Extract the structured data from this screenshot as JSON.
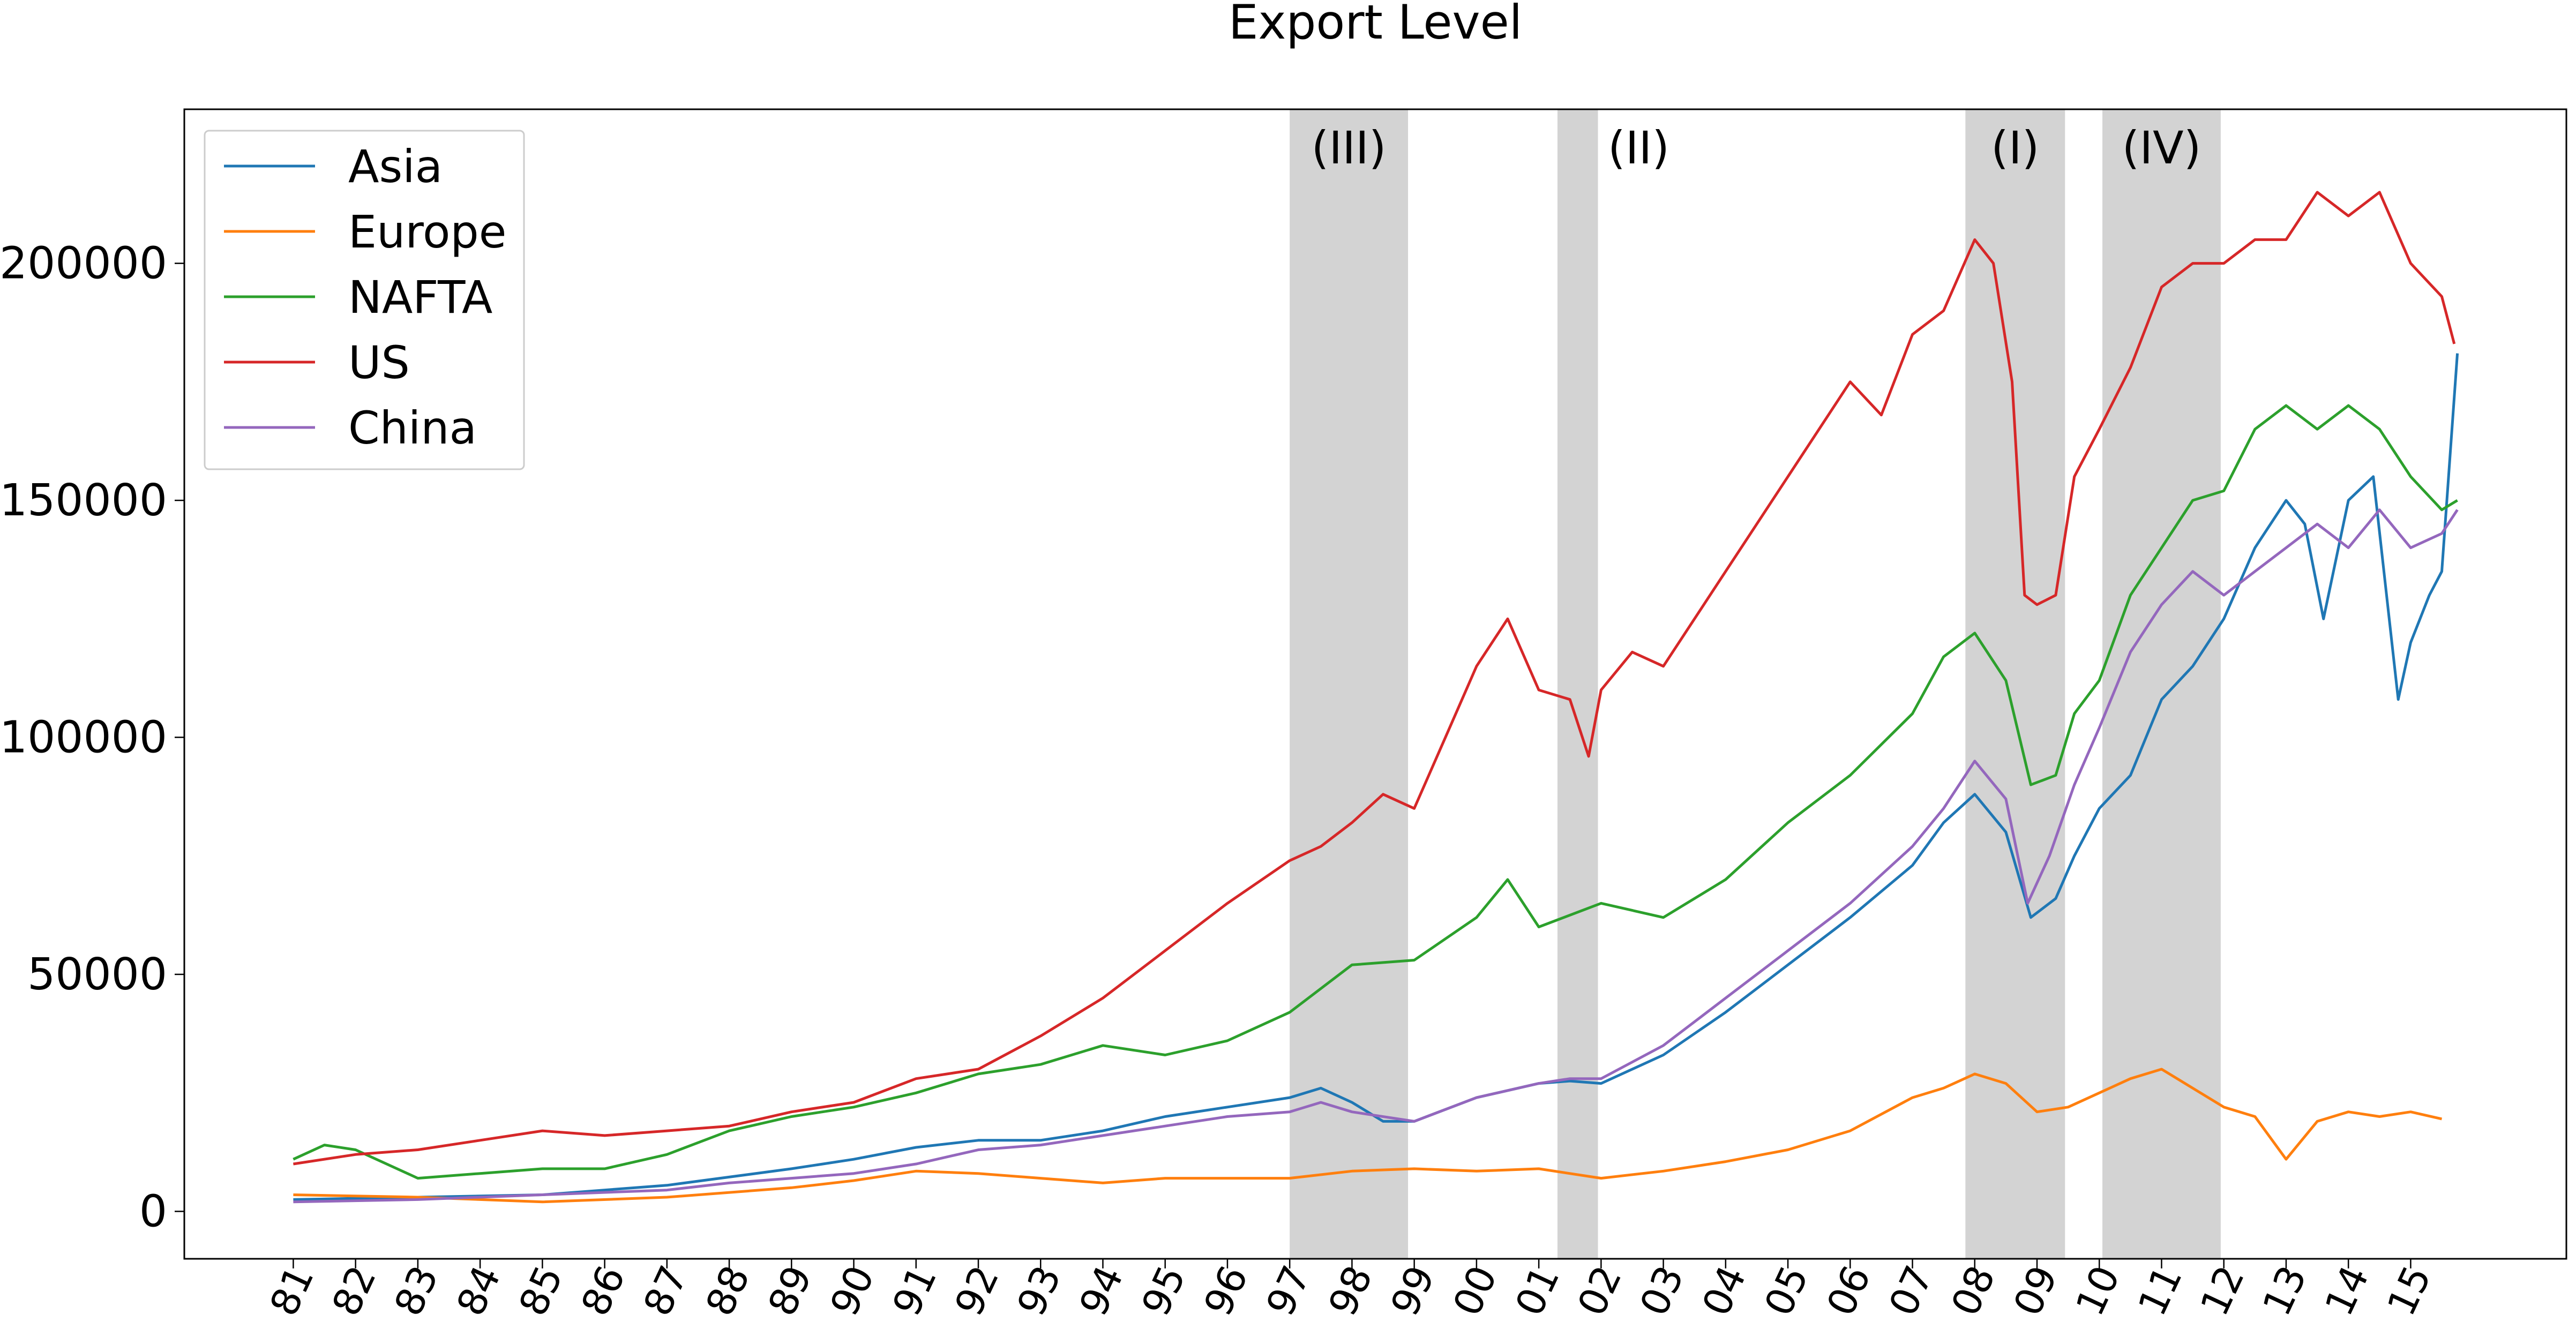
{
  "chart_data": {
    "type": "line",
    "title": "Export Level",
    "xlabel": "",
    "ylabel": "",
    "xlim": [
      1979.25,
      2017.5
    ],
    "ylim": [
      -10000,
      232500
    ],
    "x_tick_labels": [
      "81",
      "82",
      "83",
      "84",
      "85",
      "86",
      "87",
      "88",
      "89",
      "90",
      "91",
      "92",
      "93",
      "94",
      "95",
      "96",
      "97",
      "98",
      "99",
      "00",
      "01",
      "02",
      "03",
      "04",
      "05",
      "06",
      "07",
      "08",
      "09",
      "10",
      "11",
      "12",
      "13",
      "14",
      "15"
    ],
    "x_tick_years": [
      1981,
      1982,
      1983,
      1984,
      1985,
      1986,
      1987,
      1988,
      1989,
      1990,
      1991,
      1992,
      1993,
      1994,
      1995,
      1996,
      1997,
      1998,
      1999,
      2000,
      2001,
      2002,
      2003,
      2004,
      2005,
      2006,
      2007,
      2008,
      2009,
      2010,
      2011,
      2012,
      2013,
      2014,
      2015
    ],
    "y_ticks": [
      0,
      50000,
      100000,
      150000,
      200000
    ],
    "y_tick_labels": [
      "0",
      "50000",
      "100000",
      "150000",
      "200000"
    ],
    "grid": false,
    "legend_position": "top-left",
    "shaded_periods": [
      {
        "label": "(III)",
        "start": 1997.0,
        "end": 1998.9
      },
      {
        "label": "(II)",
        "start": 2001.3,
        "end": 2001.95
      },
      {
        "label": "(I)",
        "start": 2007.85,
        "end": 2009.45
      },
      {
        "label": "(IV)",
        "start": 2010.05,
        "end": 2011.95
      }
    ],
    "series": [
      {
        "name": "Asia",
        "color": "#1f77b4",
        "points": [
          [
            1981,
            2500
          ],
          [
            1983,
            3000
          ],
          [
            1985,
            3500
          ],
          [
            1987,
            5500
          ],
          [
            1989,
            9000
          ],
          [
            1990,
            11000
          ],
          [
            1991,
            13500
          ],
          [
            1992,
            15000
          ],
          [
            1993,
            15000
          ],
          [
            1994,
            17000
          ],
          [
            1995,
            20000
          ],
          [
            1996,
            22000
          ],
          [
            1997,
            24000
          ],
          [
            1997.5,
            26000
          ],
          [
            1998,
            23000
          ],
          [
            1998.5,
            19000
          ],
          [
            1999,
            19000
          ],
          [
            2000,
            24000
          ],
          [
            2001,
            27000
          ],
          [
            2001.5,
            27500
          ],
          [
            2002,
            27000
          ],
          [
            2003,
            33000
          ],
          [
            2004,
            42000
          ],
          [
            2005,
            52000
          ],
          [
            2006,
            62000
          ],
          [
            2007,
            73000
          ],
          [
            2007.5,
            82000
          ],
          [
            2008,
            88000
          ],
          [
            2008.5,
            80000
          ],
          [
            2008.9,
            62000
          ],
          [
            2009.3,
            66000
          ],
          [
            2009.6,
            75000
          ],
          [
            2010,
            85000
          ],
          [
            2010.5,
            92000
          ],
          [
            2011,
            108000
          ],
          [
            2011.5,
            115000
          ],
          [
            2012,
            125000
          ],
          [
            2012.5,
            140000
          ],
          [
            2013,
            150000
          ],
          [
            2013.3,
            145000
          ],
          [
            2013.6,
            125000
          ],
          [
            2014,
            150000
          ],
          [
            2014.4,
            155000
          ],
          [
            2014.8,
            108000
          ],
          [
            2015,
            120000
          ],
          [
            2015.3,
            130000
          ],
          [
            2015.5,
            135000
          ],
          [
            2015.75,
            181000
          ]
        ]
      },
      {
        "name": "Europe",
        "color": "#ff7f0e",
        "points": [
          [
            1981,
            3500
          ],
          [
            1983,
            3000
          ],
          [
            1985,
            2000
          ],
          [
            1987,
            3000
          ],
          [
            1989,
            5000
          ],
          [
            1990,
            6500
          ],
          [
            1991,
            8500
          ],
          [
            1992,
            8000
          ],
          [
            1993,
            7000
          ],
          [
            1994,
            6000
          ],
          [
            1995,
            7000
          ],
          [
            1996,
            7000
          ],
          [
            1997,
            7000
          ],
          [
            1998,
            8500
          ],
          [
            1999,
            9000
          ],
          [
            2000,
            8500
          ],
          [
            2001,
            9000
          ],
          [
            2002,
            7000
          ],
          [
            2003,
            8500
          ],
          [
            2004,
            10500
          ],
          [
            2005,
            13000
          ],
          [
            2006,
            17000
          ],
          [
            2007,
            24000
          ],
          [
            2007.5,
            26000
          ],
          [
            2008,
            29000
          ],
          [
            2008.5,
            27000
          ],
          [
            2009,
            21000
          ],
          [
            2009.5,
            22000
          ],
          [
            2010,
            25000
          ],
          [
            2010.5,
            28000
          ],
          [
            2011,
            30000
          ],
          [
            2011.5,
            26000
          ],
          [
            2012,
            22000
          ],
          [
            2012.5,
            20000
          ],
          [
            2013,
            11000
          ],
          [
            2013.5,
            19000
          ],
          [
            2014,
            21000
          ],
          [
            2014.5,
            20000
          ],
          [
            2015,
            21000
          ],
          [
            2015.5,
            19500
          ]
        ]
      },
      {
        "name": "NAFTA",
        "color": "#2ca02c",
        "points": [
          [
            1981,
            11000
          ],
          [
            1981.5,
            14000
          ],
          [
            1982,
            13000
          ],
          [
            1983,
            7000
          ],
          [
            1984,
            8000
          ],
          [
            1985,
            9000
          ],
          [
            1986,
            9000
          ],
          [
            1987,
            12000
          ],
          [
            1988,
            17000
          ],
          [
            1989,
            20000
          ],
          [
            1990,
            22000
          ],
          [
            1991,
            25000
          ],
          [
            1992,
            29000
          ],
          [
            1993,
            31000
          ],
          [
            1994,
            35000
          ],
          [
            1995,
            33000
          ],
          [
            1996,
            36000
          ],
          [
            1997,
            42000
          ],
          [
            1998,
            52000
          ],
          [
            1999,
            53000
          ],
          [
            2000,
            62000
          ],
          [
            2000.5,
            70000
          ],
          [
            2001,
            60000
          ],
          [
            2002,
            65000
          ],
          [
            2003,
            62000
          ],
          [
            2004,
            70000
          ],
          [
            2005,
            82000
          ],
          [
            2006,
            92000
          ],
          [
            2007,
            105000
          ],
          [
            2007.5,
            117000
          ],
          [
            2008,
            122000
          ],
          [
            2008.5,
            112000
          ],
          [
            2008.9,
            90000
          ],
          [
            2009.3,
            92000
          ],
          [
            2009.6,
            105000
          ],
          [
            2010,
            112000
          ],
          [
            2010.5,
            130000
          ],
          [
            2011,
            140000
          ],
          [
            2011.5,
            150000
          ],
          [
            2012,
            152000
          ],
          [
            2012.5,
            165000
          ],
          [
            2013,
            170000
          ],
          [
            2013.5,
            165000
          ],
          [
            2014,
            170000
          ],
          [
            2014.5,
            165000
          ],
          [
            2015,
            155000
          ],
          [
            2015.5,
            148000
          ],
          [
            2015.75,
            150000
          ]
        ]
      },
      {
        "name": "US",
        "color": "#d62728",
        "points": [
          [
            1981,
            10000
          ],
          [
            1982,
            12000
          ],
          [
            1983,
            13000
          ],
          [
            1984,
            15000
          ],
          [
            1985,
            17000
          ],
          [
            1986,
            16000
          ],
          [
            1987,
            17000
          ],
          [
            1988,
            18000
          ],
          [
            1989,
            21000
          ],
          [
            1990,
            23000
          ],
          [
            1991,
            28000
          ],
          [
            1992,
            30000
          ],
          [
            1993,
            37000
          ],
          [
            1994,
            45000
          ],
          [
            1995,
            55000
          ],
          [
            1996,
            65000
          ],
          [
            1997,
            74000
          ],
          [
            1997.5,
            77000
          ],
          [
            1998,
            82000
          ],
          [
            1998.5,
            88000
          ],
          [
            1999,
            85000
          ],
          [
            1999.5,
            100000
          ],
          [
            2000,
            115000
          ],
          [
            2000.5,
            125000
          ],
          [
            2001,
            110000
          ],
          [
            2001.5,
            108000
          ],
          [
            2001.8,
            96000
          ],
          [
            2002,
            110000
          ],
          [
            2002.5,
            118000
          ],
          [
            2003,
            115000
          ],
          [
            2004,
            135000
          ],
          [
            2005,
            155000
          ],
          [
            2006,
            175000
          ],
          [
            2006.5,
            168000
          ],
          [
            2007,
            185000
          ],
          [
            2007.5,
            190000
          ],
          [
            2008,
            205000
          ],
          [
            2008.3,
            200000
          ],
          [
            2008.6,
            175000
          ],
          [
            2008.8,
            130000
          ],
          [
            2009,
            128000
          ],
          [
            2009.3,
            130000
          ],
          [
            2009.6,
            155000
          ],
          [
            2010,
            165000
          ],
          [
            2010.5,
            178000
          ],
          [
            2011,
            195000
          ],
          [
            2011.5,
            200000
          ],
          [
            2012,
            200000
          ],
          [
            2012.5,
            205000
          ],
          [
            2013,
            205000
          ],
          [
            2013.5,
            215000
          ],
          [
            2014,
            210000
          ],
          [
            2014.5,
            215000
          ],
          [
            2015,
            200000
          ],
          [
            2015.5,
            193000
          ],
          [
            2015.7,
            183000
          ]
        ]
      },
      {
        "name": "China",
        "color": "#9467bd",
        "points": [
          [
            1981,
            2000
          ],
          [
            1983,
            2500
          ],
          [
            1985,
            3500
          ],
          [
            1987,
            4500
          ],
          [
            1988,
            6000
          ],
          [
            1989,
            7000
          ],
          [
            1990,
            8000
          ],
          [
            1991,
            10000
          ],
          [
            1992,
            13000
          ],
          [
            1993,
            14000
          ],
          [
            1994,
            16000
          ],
          [
            1995,
            18000
          ],
          [
            1996,
            20000
          ],
          [
            1997,
            21000
          ],
          [
            1997.5,
            23000
          ],
          [
            1998,
            21000
          ],
          [
            1999,
            19000
          ],
          [
            2000,
            24000
          ],
          [
            2001,
            27000
          ],
          [
            2001.5,
            28000
          ],
          [
            2002,
            28000
          ],
          [
            2003,
            35000
          ],
          [
            2004,
            45000
          ],
          [
            2005,
            55000
          ],
          [
            2006,
            65000
          ],
          [
            2007,
            77000
          ],
          [
            2007.5,
            85000
          ],
          [
            2008,
            95000
          ],
          [
            2008.5,
            87000
          ],
          [
            2008.85,
            65000
          ],
          [
            2009.2,
            75000
          ],
          [
            2009.6,
            90000
          ],
          [
            2010,
            102000
          ],
          [
            2010.5,
            118000
          ],
          [
            2011,
            128000
          ],
          [
            2011.5,
            135000
          ],
          [
            2012,
            130000
          ],
          [
            2012.5,
            135000
          ],
          [
            2013,
            140000
          ],
          [
            2013.5,
            145000
          ],
          [
            2014,
            140000
          ],
          [
            2014.5,
            148000
          ],
          [
            2015,
            140000
          ],
          [
            2015.5,
            143000
          ],
          [
            2015.75,
            148000
          ]
        ]
      }
    ]
  }
}
